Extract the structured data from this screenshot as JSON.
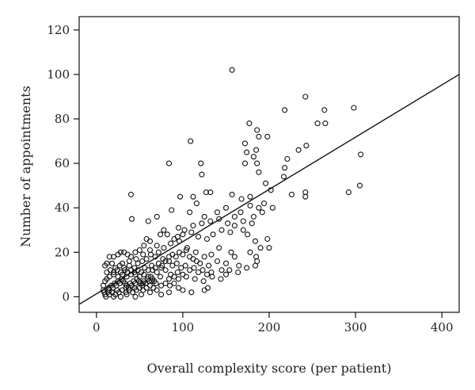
{
  "chart_data": {
    "type": "scatter",
    "xlabel": "Overall complexity score (per patient)",
    "ylabel": "Number of appointments",
    "xlim": [
      -20,
      420
    ],
    "ylim": [
      -7,
      126
    ],
    "x_ticks": [
      0,
      100,
      200,
      300,
      400
    ],
    "y_ticks": [
      0,
      20,
      40,
      60,
      80,
      100,
      120
    ],
    "grid": false,
    "marker": "open-circle",
    "colors": {
      "points": "#111111",
      "line": "#111111",
      "frame": "#111111"
    },
    "trend_line": {
      "intercept": 1.3,
      "slope": 0.235
    },
    "points": [
      [
        157,
        102
      ],
      [
        242,
        90
      ],
      [
        218,
        84
      ],
      [
        264,
        84
      ],
      [
        298,
        85
      ],
      [
        256,
        78
      ],
      [
        265,
        78
      ],
      [
        177,
        78
      ],
      [
        186,
        75
      ],
      [
        188,
        72
      ],
      [
        172,
        69
      ],
      [
        198,
        72
      ],
      [
        109,
        70
      ],
      [
        243,
        68
      ],
      [
        234,
        66
      ],
      [
        174,
        65
      ],
      [
        185,
        66
      ],
      [
        182,
        63
      ],
      [
        306,
        64
      ],
      [
        221,
        62
      ],
      [
        172,
        60
      ],
      [
        186,
        60
      ],
      [
        218,
        58
      ],
      [
        84,
        60
      ],
      [
        121,
        60
      ],
      [
        188,
        56
      ],
      [
        122,
        55
      ],
      [
        217,
        54
      ],
      [
        196,
        51
      ],
      [
        202,
        48
      ],
      [
        305,
        50
      ],
      [
        226,
        46
      ],
      [
        242,
        45
      ],
      [
        242,
        47
      ],
      [
        292,
        47
      ],
      [
        40,
        46
      ],
      [
        97,
        45
      ],
      [
        112,
        45
      ],
      [
        127,
        47
      ],
      [
        132,
        47
      ],
      [
        157,
        46
      ],
      [
        168,
        44
      ],
      [
        178,
        45
      ],
      [
        116,
        42
      ],
      [
        188,
        40
      ],
      [
        194,
        42
      ],
      [
        167,
        38
      ],
      [
        178,
        41
      ],
      [
        182,
        36
      ],
      [
        150,
        40
      ],
      [
        140,
        38
      ],
      [
        125,
        36
      ],
      [
        108,
        38
      ],
      [
        87,
        39
      ],
      [
        70,
        36
      ],
      [
        60,
        34
      ],
      [
        41,
        35
      ],
      [
        95,
        31
      ],
      [
        100,
        28
      ],
      [
        110,
        29
      ],
      [
        118,
        27
      ],
      [
        128,
        26
      ],
      [
        135,
        28
      ],
      [
        145,
        30
      ],
      [
        155,
        29
      ],
      [
        160,
        32
      ],
      [
        170,
        30
      ],
      [
        175,
        28
      ],
      [
        184,
        25
      ],
      [
        190,
        22
      ],
      [
        198,
        26
      ],
      [
        200,
        22
      ],
      [
        185,
        18
      ],
      [
        186,
        16
      ],
      [
        178,
        20
      ],
      [
        156,
        20
      ],
      [
        142,
        22
      ],
      [
        133,
        19
      ],
      [
        125,
        18
      ],
      [
        115,
        20
      ],
      [
        105,
        22
      ],
      [
        96,
        25
      ],
      [
        90,
        26
      ],
      [
        82,
        28
      ],
      [
        78,
        30
      ],
      [
        74,
        28
      ],
      [
        62,
        25
      ],
      [
        58,
        26
      ],
      [
        55,
        23
      ],
      [
        50,
        21
      ],
      [
        45,
        20
      ],
      [
        40,
        18
      ],
      [
        36,
        19
      ],
      [
        32,
        20
      ],
      [
        28,
        20
      ],
      [
        25,
        19
      ],
      [
        20,
        18
      ],
      [
        15,
        18
      ],
      [
        12,
        15
      ],
      [
        10,
        14
      ],
      [
        18,
        15
      ],
      [
        22,
        13
      ],
      [
        27,
        14
      ],
      [
        33,
        12
      ],
      [
        38,
        14
      ],
      [
        44,
        13
      ],
      [
        48,
        15
      ],
      [
        53,
        16
      ],
      [
        58,
        17
      ],
      [
        63,
        19
      ],
      [
        68,
        18
      ],
      [
        72,
        20
      ],
      [
        77,
        17
      ],
      [
        84,
        16
      ],
      [
        88,
        14
      ],
      [
        93,
        15
      ],
      [
        98,
        13
      ],
      [
        103,
        14
      ],
      [
        108,
        12
      ],
      [
        113,
        13
      ],
      [
        118,
        11
      ],
      [
        123,
        12
      ],
      [
        128,
        10
      ],
      [
        133,
        11
      ],
      [
        65,
        12
      ],
      [
        70,
        11
      ],
      [
        75,
        13
      ],
      [
        80,
        12
      ],
      [
        86,
        10
      ],
      [
        90,
        9
      ],
      [
        95,
        8
      ],
      [
        100,
        10
      ],
      [
        55,
        10
      ],
      [
        60,
        9
      ],
      [
        45,
        10
      ],
      [
        50,
        9
      ],
      [
        40,
        10
      ],
      [
        35,
        9
      ],
      [
        30,
        10
      ],
      [
        25,
        9
      ],
      [
        20,
        10
      ],
      [
        15,
        9
      ],
      [
        12,
        8
      ],
      [
        10,
        7
      ],
      [
        8,
        5
      ],
      [
        8,
        3
      ],
      [
        9,
        2
      ],
      [
        10,
        1
      ],
      [
        11,
        0
      ],
      [
        13,
        2
      ],
      [
        15,
        3
      ],
      [
        17,
        5
      ],
      [
        19,
        4
      ],
      [
        21,
        6
      ],
      [
        23,
        5
      ],
      [
        25,
        7
      ],
      [
        27,
        6
      ],
      [
        29,
        8
      ],
      [
        31,
        7
      ],
      [
        33,
        6
      ],
      [
        35,
        5
      ],
      [
        37,
        4
      ],
      [
        39,
        6
      ],
      [
        41,
        5
      ],
      [
        43,
        7
      ],
      [
        45,
        6
      ],
      [
        47,
        8
      ],
      [
        49,
        7
      ],
      [
        51,
        6
      ],
      [
        53,
        5
      ],
      [
        55,
        7
      ],
      [
        57,
        6
      ],
      [
        59,
        8
      ],
      [
        61,
        7
      ],
      [
        63,
        9
      ],
      [
        65,
        8
      ],
      [
        67,
        7
      ],
      [
        69,
        6
      ],
      [
        15,
        1
      ],
      [
        18,
        2
      ],
      [
        22,
        1
      ],
      [
        26,
        2
      ],
      [
        30,
        3
      ],
      [
        34,
        2
      ],
      [
        38,
        3
      ],
      [
        42,
        2
      ],
      [
        46,
        3
      ],
      [
        50,
        4
      ],
      [
        54,
        3
      ],
      [
        58,
        4
      ],
      [
        62,
        5
      ],
      [
        66,
        4
      ],
      [
        70,
        3
      ],
      [
        75,
        5
      ],
      [
        80,
        6
      ],
      [
        85,
        5
      ],
      [
        90,
        6
      ],
      [
        12,
        11
      ],
      [
        16,
        12
      ],
      [
        20,
        11
      ],
      [
        24,
        12
      ],
      [
        28,
        11
      ],
      [
        32,
        13
      ],
      [
        36,
        11
      ],
      [
        40,
        12
      ],
      [
        44,
        11
      ],
      [
        48,
        12
      ],
      [
        52,
        11
      ],
      [
        56,
        13
      ],
      [
        60,
        12
      ],
      [
        64,
        14
      ],
      [
        68,
        13
      ],
      [
        72,
        15
      ],
      [
        76,
        14
      ],
      [
        80,
        16
      ],
      [
        84,
        18
      ],
      [
        88,
        19
      ],
      [
        92,
        18
      ],
      [
        96,
        20
      ],
      [
        100,
        19
      ],
      [
        104,
        21
      ],
      [
        108,
        18
      ],
      [
        112,
        17
      ],
      [
        116,
        16
      ],
      [
        120,
        15
      ],
      [
        130,
        14
      ],
      [
        140,
        16
      ],
      [
        150,
        15
      ],
      [
        160,
        18
      ],
      [
        165,
        14
      ],
      [
        145,
        12
      ],
      [
        150,
        10
      ],
      [
        129,
        4
      ],
      [
        125,
        3
      ],
      [
        110,
        2
      ],
      [
        100,
        3
      ],
      [
        95,
        4
      ],
      [
        84,
        2
      ],
      [
        75,
        1
      ],
      [
        62,
        2
      ],
      [
        52,
        1
      ],
      [
        45,
        0
      ],
      [
        35,
        1
      ],
      [
        28,
        0
      ],
      [
        20,
        0
      ],
      [
        14,
        4
      ],
      [
        24,
        3
      ],
      [
        34,
        4
      ],
      [
        44,
        4
      ],
      [
        54,
        6
      ],
      [
        64,
        7
      ],
      [
        74,
        9
      ],
      [
        84,
        8
      ],
      [
        94,
        11
      ],
      [
        104,
        9
      ],
      [
        114,
        8
      ],
      [
        124,
        7
      ],
      [
        134,
        9
      ],
      [
        144,
        8
      ],
      [
        154,
        12
      ],
      [
        164,
        11
      ],
      [
        174,
        13
      ],
      [
        184,
        14
      ],
      [
        30,
        15
      ],
      [
        38,
        16
      ],
      [
        46,
        17
      ],
      [
        54,
        19
      ],
      [
        62,
        21
      ],
      [
        70,
        23
      ],
      [
        78,
        22
      ],
      [
        86,
        24
      ],
      [
        94,
        27
      ],
      [
        102,
        30
      ],
      [
        112,
        32
      ],
      [
        122,
        33
      ],
      [
        132,
        34
      ],
      [
        142,
        35
      ],
      [
        152,
        33
      ],
      [
        160,
        36
      ],
      [
        170,
        34
      ],
      [
        180,
        33
      ],
      [
        192,
        38
      ],
      [
        204,
        40
      ]
    ]
  }
}
